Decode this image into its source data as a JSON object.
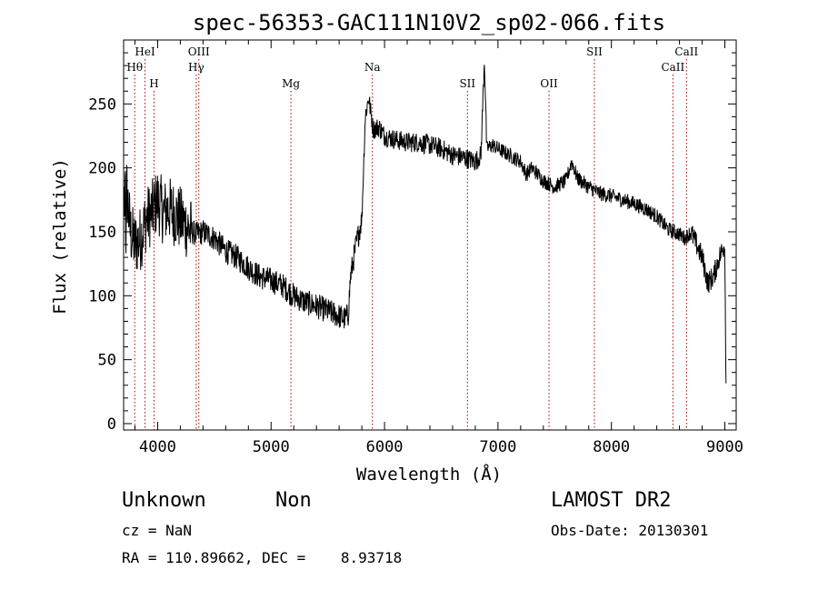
{
  "chart_data": {
    "type": "line",
    "title": "spec-56353-GAC111N10V2_sp02-066.fits",
    "xlabel": "Wavelength (Å)",
    "ylabel": "Flux (relative)",
    "xlim": [
      3700,
      9100
    ],
    "ylim": [
      -5,
      300
    ],
    "xticks": [
      4000,
      5000,
      6000,
      7000,
      8000,
      9000
    ],
    "yticks": [
      0,
      50,
      100,
      150,
      200,
      250
    ],
    "line_color": "#000000",
    "marker_color": "#aa0000",
    "spectrum_anchors": {
      "x": [
        3700,
        3720,
        3760,
        3800,
        3850,
        3900,
        3950,
        4000,
        4050,
        4100,
        4200,
        4300,
        4350,
        4400,
        4500,
        4600,
        4700,
        4800,
        4900,
        5000,
        5100,
        5200,
        5300,
        5400,
        5500,
        5600,
        5650,
        5680,
        5700,
        5750,
        5800,
        5830,
        5860,
        5900,
        5950,
        6000,
        6100,
        6200,
        6300,
        6400,
        6500,
        6600,
        6700,
        6800,
        6850,
        6880,
        6890,
        6900,
        6950,
        7000,
        7100,
        7200,
        7250,
        7300,
        7350,
        7400,
        7500,
        7600,
        7650,
        7700,
        7800,
        7900,
        8000,
        8100,
        8200,
        8300,
        8400,
        8500,
        8600,
        8650,
        8700,
        8750,
        8800,
        8850,
        8900,
        8950,
        9000,
        9010
      ],
      "y": [
        170,
        190,
        150,
        140,
        145,
        160,
        165,
        175,
        165,
        168,
        160,
        150,
        148,
        150,
        145,
        135,
        130,
        122,
        115,
        112,
        108,
        100,
        95,
        92,
        88,
        84,
        82,
        85,
        115,
        140,
        160,
        240,
        255,
        230,
        232,
        225,
        222,
        220,
        220,
        218,
        215,
        210,
        208,
        205,
        210,
        285,
        255,
        215,
        218,
        215,
        210,
        205,
        195,
        200,
        195,
        190,
        185,
        190,
        205,
        192,
        185,
        180,
        178,
        175,
        172,
        168,
        162,
        152,
        148,
        145,
        150,
        140,
        130,
        110,
        115,
        130,
        140,
        30
      ]
    },
    "spectral_lines": [
      {
        "label": "Hθ",
        "x": 3798,
        "row": 2
      },
      {
        "label": "HeI",
        "x": 3889,
        "row": 1
      },
      {
        "label": "H",
        "x": 3968,
        "row": 3
      },
      {
        "label": "OIII",
        "x": 4363,
        "row": 1
      },
      {
        "label": "Hγ",
        "x": 4340,
        "row": 2
      },
      {
        "label": "Mg",
        "x": 5175,
        "row": 3
      },
      {
        "label": "Na",
        "x": 5893,
        "row": 2
      },
      {
        "label": "SII",
        "x": 6731,
        "row": 3
      },
      {
        "label": "OII",
        "x": 7450,
        "row": 3
      },
      {
        "label": "SII",
        "x": 7850,
        "row": 1
      },
      {
        "label": "CaII",
        "x": 8542,
        "row": 2
      },
      {
        "label": "CaII",
        "x": 8662,
        "row": 1
      }
    ]
  },
  "info": {
    "object_class": "Unknown",
    "subclass": "Non",
    "survey": "LAMOST DR2",
    "cz": "cz = NaN",
    "obs_date": "Obs-Date: 20130301",
    "coords": "RA = 110.89662, DEC =    8.93718"
  }
}
